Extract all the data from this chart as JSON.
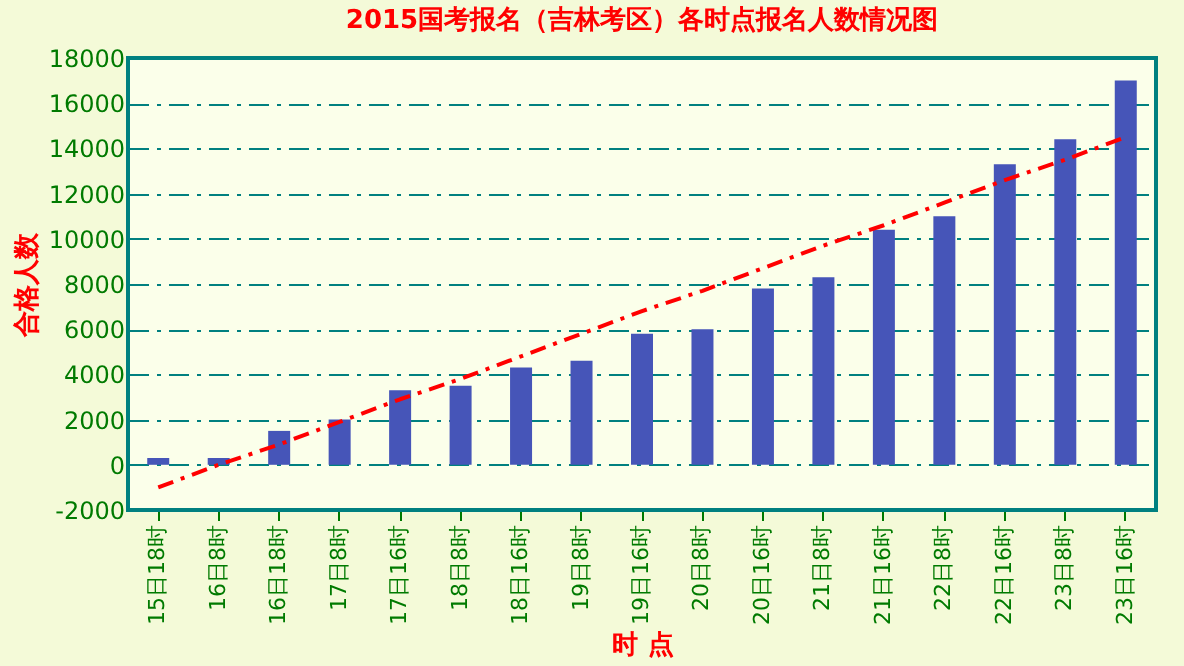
{
  "chart_data": {
    "type": "bar",
    "title": "2015国考报名（吉林考区）各时点报名人数情况图",
    "xlabel": "时 点",
    "ylabel": "合格人数",
    "categories": [
      "15日18时",
      "16日8时",
      "16日18时",
      "17日8时",
      "17日16时",
      "18日8时",
      "18日16时",
      "19日8时",
      "19日16时",
      "20日8时",
      "20日16时",
      "21日8时",
      "21日16时",
      "22日8时",
      "22日16时",
      "23日8时",
      "23日16时"
    ],
    "series": [
      {
        "color": "#4655b8",
        "values": [
          300,
          300,
          1500,
          2000,
          3300,
          3500,
          4300,
          4600,
          5800,
          6000,
          7800,
          8300,
          10400,
          11000,
          13300,
          14400,
          17000
        ]
      },
      {
        "type": "line",
        "color": "#ff0000",
        "line_style": "dashed",
        "marker": "none",
        "values": [
          -1000,
          0,
          900,
          1900,
          2900,
          3800,
          4800,
          5800,
          6800,
          7700,
          8700,
          9700,
          10600,
          11600,
          12600,
          13500,
          14500
        ]
      }
    ],
    "ylim": [
      -2000,
      18000
    ],
    "yticks": [
      -2000,
      0,
      2000,
      4000,
      6000,
      8000,
      10000,
      12000,
      14000,
      16000,
      18000
    ],
    "grid": "y"
  }
}
